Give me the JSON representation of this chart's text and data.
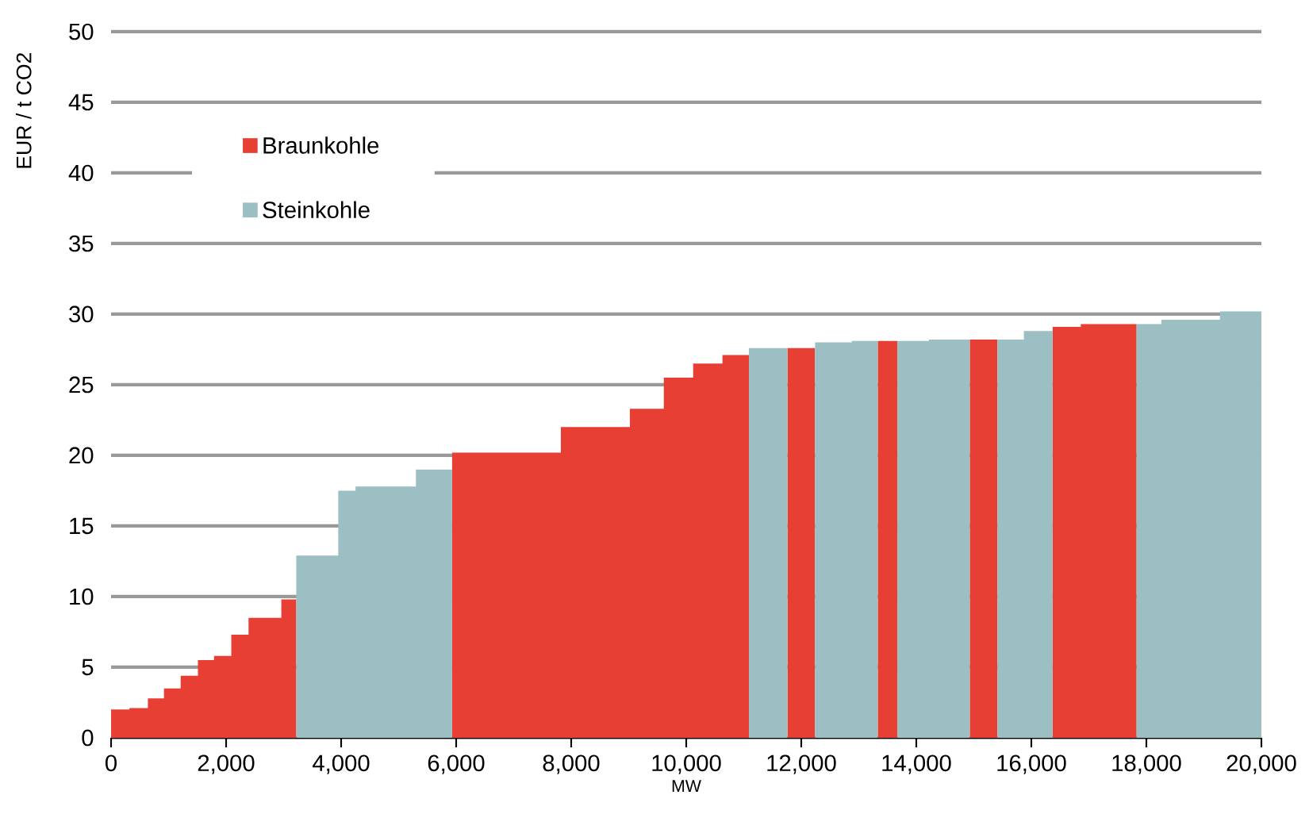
{
  "chart_data": {
    "type": "area",
    "xlabel": "MW",
    "ylabel": "EUR / t CO2",
    "series": [
      {
        "name": "Braunkohle",
        "color": "#e83f35",
        "x": [
          0,
          320,
          320,
          640,
          640,
          920,
          920,
          1210,
          1210,
          1510,
          1510,
          1790,
          1790,
          2090,
          2090,
          2390,
          2390,
          2960,
          2960,
          3220,
          4000,
          5930,
          7820,
          7820,
          9020,
          9020,
          9610,
          9610,
          10120,
          10120,
          10630,
          10630,
          11090,
          11400,
          11760,
          12240,
          12800,
          13330,
          13670,
          14300,
          14930,
          15410,
          15900,
          16370,
          16860,
          16860,
          17830
        ],
        "values": [
          2.0,
          2.0,
          2.1,
          2.1,
          2.8,
          2.8,
          3.5,
          3.5,
          4.4,
          4.4,
          5.5,
          5.5,
          5.8,
          5.8,
          7.3,
          7.3,
          8.5,
          8.5,
          9.8,
          9.8,
          null,
          20.2,
          20.2,
          22.0,
          22.0,
          23.3,
          23.3,
          25.5,
          25.5,
          26.5,
          26.5,
          27.1,
          27.1,
          null,
          27.6,
          27.6,
          null,
          28.1,
          28.1,
          null,
          28.2,
          28.2,
          null,
          29.1,
          29.1,
          29.3,
          29.3
        ]
      },
      {
        "name": "Steinkohle",
        "color": "#9bbfc2",
        "x": [
          3220,
          3950,
          3950,
          4250,
          4250,
          5300,
          5300,
          5930,
          8000,
          11090,
          11760,
          12000,
          12240,
          12880,
          12880,
          13330,
          13500,
          13670,
          14220,
          14220,
          14930,
          15100,
          15410,
          15870,
          15870,
          16370,
          17000,
          17830,
          18260,
          18260,
          19280,
          19280,
          20000
        ],
        "values": [
          12.9,
          12.9,
          17.5,
          17.5,
          17.8,
          17.8,
          19.0,
          19.0,
          null,
          27.6,
          27.6,
          null,
          28.0,
          28.0,
          28.1,
          28.1,
          null,
          28.1,
          28.1,
          28.2,
          28.2,
          null,
          28.2,
          28.2,
          28.8,
          28.8,
          null,
          29.3,
          29.3,
          29.6,
          29.6,
          30.2,
          30.2
        ]
      }
    ],
    "xlim": [
      0,
      20000
    ],
    "xticks": [
      0,
      {
        "value": 2000,
        "label": "2,000"
      },
      {
        "value": 4000,
        "label": "4,000"
      },
      {
        "value": 6000,
        "label": "6,000"
      },
      {
        "value": 8000,
        "label": "8,000"
      },
      {
        "value": 10000,
        "label": "10,000"
      },
      {
        "value": 12000,
        "label": "12,000"
      },
      {
        "value": 14000,
        "label": "14,000"
      },
      {
        "value": 16000,
        "label": "16,000"
      },
      {
        "value": 18000,
        "label": "18,000"
      },
      {
        "value": 20000,
        "label": "20,000"
      }
    ],
    "ylim": [
      0,
      50
    ],
    "yticks": [
      0,
      5,
      10,
      15,
      20,
      25,
      30,
      35,
      40,
      45,
      50
    ],
    "grid": "y",
    "legend": "top left"
  }
}
